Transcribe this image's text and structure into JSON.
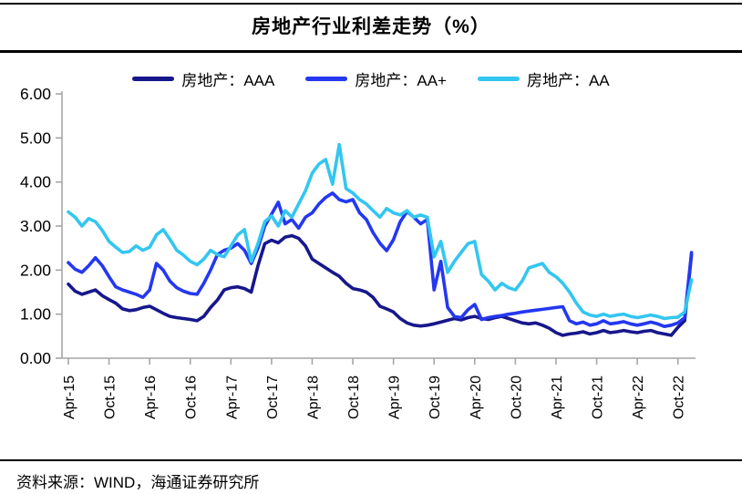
{
  "figure": {
    "title": "房地产行业利差走势（%）",
    "source": "资料来源：WIND，海通证券研究所"
  },
  "chart_data": {
    "type": "line",
    "title": "房地产行业利差走势（%）",
    "ylim": [
      0,
      6
    ],
    "y_tick_labels": [
      "0.00",
      "1.00",
      "2.00",
      "3.00",
      "4.00",
      "5.00",
      "6.00"
    ],
    "x_tick_labels": [
      "Apr-15",
      "Oct-15",
      "Apr-16",
      "Oct-16",
      "Apr-17",
      "Oct-17",
      "Apr-18",
      "Oct-18",
      "Apr-19",
      "Oct-19",
      "Apr-20",
      "Oct-20",
      "Apr-21",
      "Oct-21",
      "Apr-22",
      "Oct-22"
    ],
    "x_start": "Apr-15",
    "x_end": "Dec-22",
    "x_months_per_tick": 6,
    "grid": false,
    "legend_position": "top",
    "axis_color": "#A6A6A6",
    "series": [
      {
        "name": "房地产：AAA",
        "color": "#17178C",
        "values": [
          1.68,
          1.52,
          1.45,
          1.5,
          1.55,
          1.42,
          1.33,
          1.25,
          1.12,
          1.08,
          1.1,
          1.15,
          1.18,
          1.1,
          1.02,
          0.95,
          0.92,
          0.9,
          0.88,
          0.85,
          0.95,
          1.15,
          1.32,
          1.55,
          1.6,
          1.62,
          1.58,
          1.5,
          2.1,
          2.6,
          2.68,
          2.62,
          2.75,
          2.78,
          2.72,
          2.55,
          2.25,
          2.15,
          2.05,
          1.95,
          1.86,
          1.7,
          1.58,
          1.55,
          1.5,
          1.38,
          1.18,
          1.12,
          1.05,
          0.9,
          0.8,
          0.75,
          0.73,
          0.75,
          0.78,
          0.82,
          0.86,
          0.9,
          0.87,
          0.92,
          0.95,
          0.9,
          0.88,
          0.92,
          0.95,
          0.9,
          0.85,
          0.8,
          0.78,
          0.8,
          0.75,
          0.68,
          0.58,
          0.52,
          0.55,
          0.57,
          0.6,
          0.55,
          0.58,
          0.63,
          0.58,
          0.6,
          0.63,
          0.6,
          0.58,
          0.61,
          0.63,
          0.58,
          0.55,
          0.52,
          0.7,
          0.85,
          2.35
        ]
      },
      {
        "name": "房地产：AA+",
        "color": "#2438F0",
        "values": [
          2.17,
          2.02,
          1.95,
          2.1,
          2.28,
          2.1,
          1.85,
          1.62,
          1.55,
          1.5,
          1.45,
          1.38,
          1.55,
          2.15,
          2.0,
          1.75,
          1.6,
          1.52,
          1.47,
          1.45,
          1.7,
          2.0,
          2.35,
          2.45,
          2.5,
          2.6,
          2.45,
          2.15,
          2.5,
          3.0,
          3.27,
          3.54,
          3.05,
          3.15,
          2.95,
          3.2,
          3.3,
          3.5,
          3.65,
          3.75,
          3.6,
          3.55,
          3.6,
          3.3,
          3.15,
          2.85,
          2.61,
          2.44,
          2.69,
          3.1,
          3.33,
          3.2,
          3.05,
          3.15,
          1.55,
          2.2,
          1.15,
          0.95,
          0.92,
          1.1,
          1.22,
          0.88,
          0.92,
          0.95,
          0.97,
          1.0,
          1.02,
          1.05,
          1.07,
          1.09,
          1.11,
          1.13,
          1.15,
          1.17,
          0.85,
          0.78,
          0.82,
          0.75,
          0.78,
          0.85,
          0.78,
          0.8,
          0.83,
          0.78,
          0.75,
          0.78,
          0.82,
          0.78,
          0.72,
          0.75,
          0.8,
          0.92,
          2.4
        ]
      },
      {
        "name": "房地产：AA",
        "color": "#33C6F0",
        "values": [
          3.32,
          3.2,
          3.0,
          3.17,
          3.1,
          2.9,
          2.65,
          2.52,
          2.4,
          2.42,
          2.55,
          2.45,
          2.52,
          2.8,
          2.92,
          2.7,
          2.45,
          2.34,
          2.2,
          2.12,
          2.25,
          2.45,
          2.35,
          2.3,
          2.55,
          2.8,
          2.92,
          2.2,
          2.6,
          3.1,
          3.23,
          3.0,
          3.35,
          3.2,
          3.5,
          3.8,
          4.2,
          4.41,
          4.51,
          3.95,
          4.85,
          3.85,
          3.75,
          3.6,
          3.5,
          3.35,
          3.2,
          3.4,
          3.3,
          3.25,
          3.35,
          3.2,
          3.25,
          3.2,
          2.3,
          2.65,
          1.95,
          2.2,
          2.4,
          2.6,
          2.65,
          1.9,
          1.75,
          1.55,
          1.7,
          1.6,
          1.55,
          1.75,
          2.05,
          2.1,
          2.15,
          1.95,
          1.85,
          1.7,
          1.5,
          1.25,
          1.05,
          0.98,
          0.95,
          1.0,
          0.95,
          0.98,
          1.0,
          0.95,
          0.92,
          0.95,
          0.98,
          0.95,
          0.9,
          0.92,
          0.93,
          1.05,
          1.78
        ]
      }
    ]
  }
}
